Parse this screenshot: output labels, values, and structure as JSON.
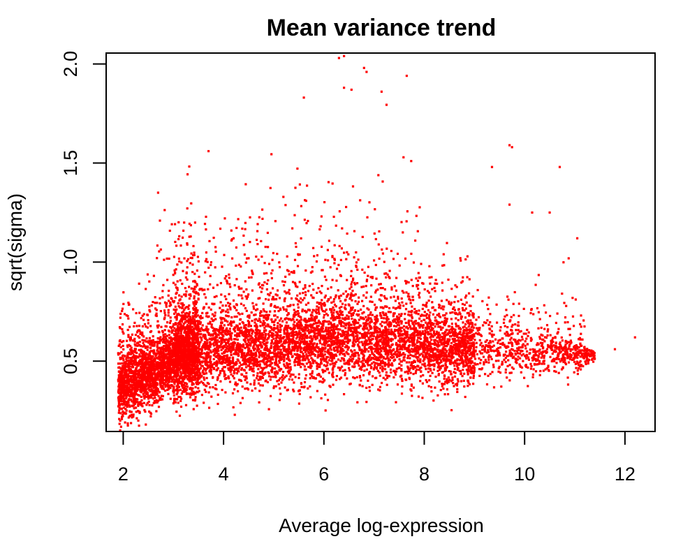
{
  "chart_data": {
    "type": "scatter",
    "title": "Mean variance trend",
    "xlabel": "Average log-expression",
    "ylabel": "sqrt(sigma)",
    "xlim": [
      1.66,
      12.6
    ],
    "ylim": [
      0.145,
      2.055
    ],
    "xticks": [
      2,
      4,
      6,
      8,
      10,
      12
    ],
    "yticks": [
      0.5,
      1.0,
      1.5,
      2.0
    ],
    "ytick_labels": [
      "0.5",
      "1.0",
      "1.5",
      "2.0"
    ],
    "grid": false,
    "legend": "none",
    "point_color": "#ff0000",
    "description_of_bulk": "dense cloud of ~20000 points; lower envelope rises from ~0.3 at x=2 to ~0.5 at x=11, median rises to ~0.6 near x=6",
    "highlighted_points": [
      {
        "x": 6.3,
        "y": 2.03
      },
      {
        "x": 6.4,
        "y": 2.04
      },
      {
        "x": 6.8,
        "y": 1.98
      },
      {
        "x": 6.85,
        "y": 1.96
      },
      {
        "x": 7.65,
        "y": 1.94
      },
      {
        "x": 5.6,
        "y": 1.83
      },
      {
        "x": 6.4,
        "y": 1.88
      },
      {
        "x": 6.55,
        "y": 1.87
      },
      {
        "x": 7.15,
        "y": 1.86
      },
      {
        "x": 9.7,
        "y": 1.59
      },
      {
        "x": 9.75,
        "y": 1.58
      },
      {
        "x": 10.7,
        "y": 1.48
      },
      {
        "x": 9.35,
        "y": 1.48
      },
      {
        "x": 9.7,
        "y": 1.29
      },
      {
        "x": 10.15,
        "y": 1.25
      },
      {
        "x": 10.5,
        "y": 1.25
      },
      {
        "x": 11.05,
        "y": 1.12
      },
      {
        "x": 12.2,
        "y": 0.62
      },
      {
        "x": 11.8,
        "y": 0.56
      },
      {
        "x": 3.7,
        "y": 1.56
      },
      {
        "x": 2.3,
        "y": 0.2
      },
      {
        "x": 2.45,
        "y": 0.18
      },
      {
        "x": 2.2,
        "y": 0.22
      }
    ]
  }
}
